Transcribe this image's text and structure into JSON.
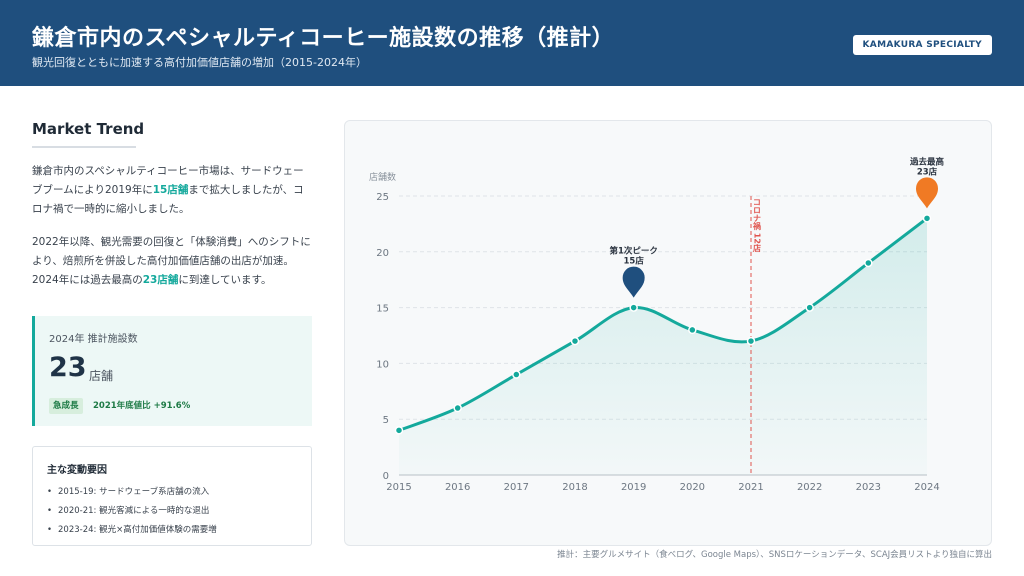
{
  "header": {
    "title": "鎌倉市内のスペシャルティコーヒー施設数の推移（推計）",
    "subtitle": "観光回復とともに加速する高付加価値店舗の増加（2015-2024年）",
    "badge": "KAMAKURA SPECIALTY"
  },
  "sidebar": {
    "heading": "Market Trend",
    "para1": {
      "pre": "鎌倉市内のスペシャルティコーヒー市場は、サードウェーブブームにより2019年に",
      "highlight": "15店舗",
      "post": "まで拡大しましたが、コロナ禍で一時的に縮小しました。"
    },
    "para2": {
      "pre": "2022年以降、観光需要の回復と「体験消費」へのシフトにより、焙煎所を併設した高付加価値店舗の出店が加速。2024年には過去最高の",
      "highlight": "23店舗",
      "post": "に到達しています。"
    },
    "stat": {
      "label": "2024年 推計施設数",
      "value": "23",
      "unit": "店舗",
      "tag": "急成長",
      "change": "2021年底値比 +91.6%"
    },
    "factors": {
      "heading": "主な変動要因",
      "items": [
        "2015-19: サードウェーブ系店舗の流入",
        "2020-21: 観光客減による一時的な退出",
        "2023-24: 観光×高付加価値体験の需要増"
      ]
    }
  },
  "footnote": "推計：主要グルメサイト（食べログ、Google Maps）、SNSロケーションデータ、SCAJ会員リストより独自に算出",
  "colors": {
    "header": "#1f4f7e",
    "line": "#14a99c",
    "peak_marker": "#1f4f7e",
    "max_marker": "#f07a24",
    "covid_line": "#e0554f"
  },
  "chart_data": {
    "type": "line",
    "x": [
      2015,
      2016,
      2017,
      2018,
      2019,
      2020,
      2021,
      2022,
      2023,
      2024
    ],
    "series": [
      {
        "values": [
          4,
          6,
          9,
          12,
          15,
          13,
          12,
          15,
          19,
          23
        ]
      }
    ],
    "ylabel": "店舗数",
    "ylim": [
      0,
      25
    ],
    "yticks": [
      0,
      5,
      10,
      15,
      20,
      25
    ],
    "grid": true,
    "annotations": [
      {
        "x": 2019,
        "y": 15,
        "lines": [
          "第1次ピーク",
          "15店"
        ],
        "marker": "pin",
        "color": "#1f4f7e"
      },
      {
        "x": 2024,
        "y": 23,
        "lines": [
          "過去最高",
          "23店"
        ],
        "marker": "pin",
        "color": "#f07a24"
      },
      {
        "x": 2021,
        "text": "コロナ禍 12店",
        "style": "dashed-vline",
        "color": "#e0554f"
      }
    ]
  }
}
